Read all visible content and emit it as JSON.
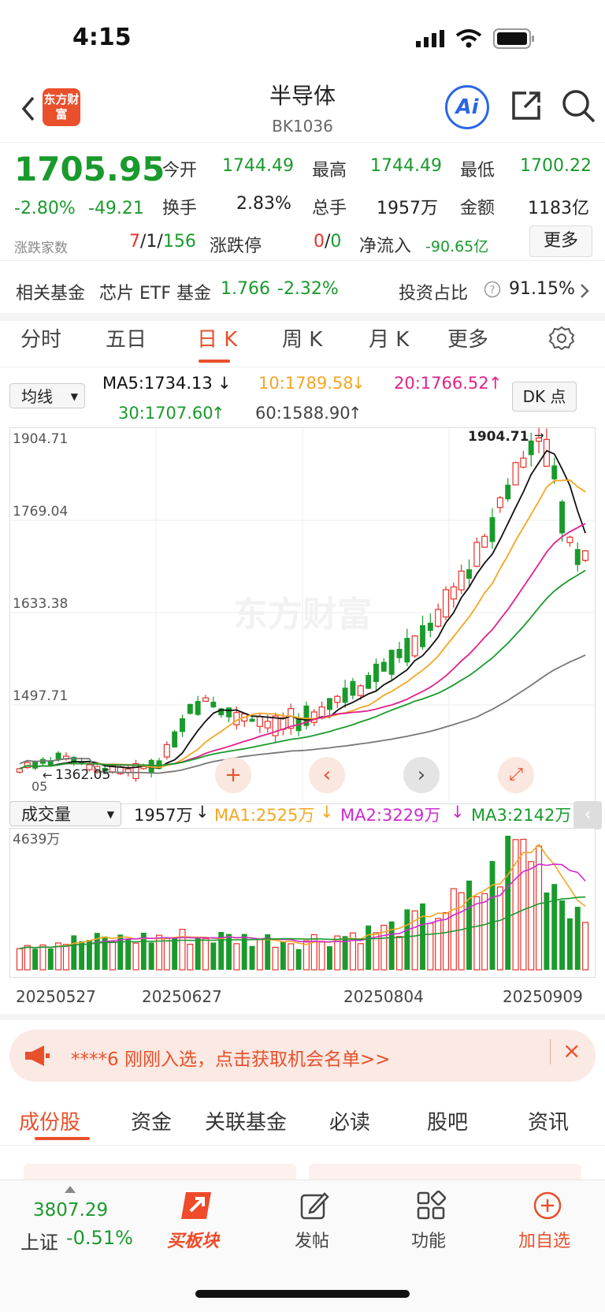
{
  "status": {
    "time": "4:15"
  },
  "header": {
    "title": "半导体",
    "code": "BK1036",
    "logo_text": "东方财富",
    "ai_label": "Ai"
  },
  "quote": {
    "price": "1705.95",
    "pct": "-2.80%",
    "change": "-49.21",
    "open_label": "今开",
    "open": "1744.49",
    "high_label": "最高",
    "high": "1744.49",
    "low_label": "最低",
    "low": "1700.22",
    "turnover_label": "换手",
    "turnover": "2.83%",
    "volume_label": "总手",
    "volume": "1957万",
    "amount_label": "金额",
    "amount": "1183亿",
    "breadth_label": "涨跌家数",
    "breadth_up": "7",
    "breadth_sep1": "/",
    "breadth_flat": "1",
    "breadth_sep2": "/",
    "breadth_down": "156",
    "limit_label": "涨跌停",
    "limit_up": "0",
    "limit_sep": "/",
    "limit_down": "0",
    "inflow_label": "净流入",
    "inflow": "-90.65亿",
    "more_label": "更多"
  },
  "fund": {
    "label": "相关基金",
    "name": "芯片 ETF 基金",
    "price": "1.766",
    "pct": "-2.32%",
    "ratio_label": "投资占比",
    "ratio": "91.15%"
  },
  "kline_tabs": [
    {
      "label": "分时"
    },
    {
      "label": "五日"
    },
    {
      "label": "日 K"
    },
    {
      "label": "周 K"
    },
    {
      "label": "月 K"
    },
    {
      "label": "更多"
    }
  ],
  "ma": {
    "selector": "均线",
    "ma5": "MA5:1734.13",
    "ma10": "10:1789.58",
    "ma20": "20:1766.52",
    "ma30": "30:1707.60",
    "ma60": "60:1588.90",
    "dk_label": "DK 点",
    "colors": {
      "ma5": "#111111",
      "ma10": "#f5a623",
      "ma20": "#e0218a",
      "ma30": "#1a9a2c",
      "ma60": "#777777"
    }
  },
  "chart": {
    "y_labels": [
      "1904.71",
      "1769.04",
      "1633.38",
      "1497.71"
    ],
    "high_marker": "1904.71",
    "low_marker": "1362.05",
    "low_axis_fragment": "05",
    "watermark": "东方财富"
  },
  "volume": {
    "selector": "成交量",
    "current": "1957万",
    "ma1": "MA1:2525万",
    "ma2": "MA2:3229万",
    "ma3": "MA3:2142万",
    "y_max": "4639万"
  },
  "dates": [
    "20250527",
    "20250627",
    "20250804",
    "20250909"
  ],
  "banner": {
    "text": "****6 刚刚入选，点击获取机会名单>>",
    "close": "×"
  },
  "bottom_tabs": [
    {
      "label": "成份股"
    },
    {
      "label": "资金"
    },
    {
      "label": "关联基金"
    },
    {
      "label": "必读"
    },
    {
      "label": "股吧"
    },
    {
      "label": "资讯"
    }
  ],
  "nav": {
    "index_value": "3807.29",
    "index_name": "上证",
    "index_pct": "-0.51%",
    "items": [
      {
        "label": "买板块"
      },
      {
        "label": "发帖"
      },
      {
        "label": "功能"
      },
      {
        "label": "加自选"
      }
    ]
  },
  "chart_data": {
    "type": "candlestick",
    "x_ticks": [
      "20250527",
      "20250627",
      "20250804",
      "20250909"
    ],
    "ylim": [
      1362.05,
      1904.71
    ],
    "y_ticks": [
      1904.71,
      1769.04,
      1633.38,
      1497.71
    ],
    "series": [
      {
        "name": "MA5",
        "last": 1734.13
      },
      {
        "name": "MA10",
        "last": 1789.58
      },
      {
        "name": "MA20",
        "last": 1766.52
      },
      {
        "name": "MA30",
        "last": 1707.6
      },
      {
        "name": "MA60",
        "last": 1588.9
      }
    ],
    "last_close": 1705.95,
    "max_price": 1904.71,
    "min_price": 1362.05,
    "volume": {
      "last": "1957万",
      "max": "4639万",
      "ma1": "2525万",
      "ma2": "3229万",
      "ma3": "2142万"
    }
  }
}
